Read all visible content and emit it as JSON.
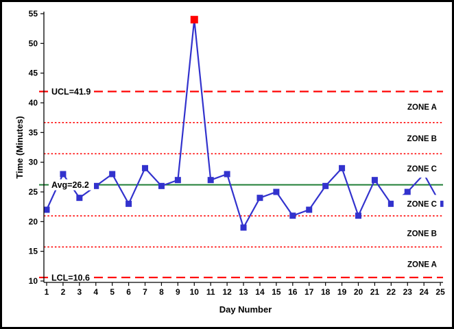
{
  "chart_data": {
    "type": "line",
    "title": "",
    "xlabel": "Day Number",
    "ylabel": "Time (Minutes)",
    "x": [
      1,
      2,
      3,
      4,
      5,
      6,
      7,
      8,
      9,
      10,
      11,
      12,
      13,
      14,
      15,
      16,
      17,
      18,
      19,
      20,
      21,
      22,
      23,
      24,
      25
    ],
    "series": [
      {
        "name": "Time",
        "values": [
          22,
          28,
          24,
          26,
          28,
          23,
          29,
          26,
          27,
          54,
          27,
          28,
          19,
          24,
          25,
          21,
          22,
          26,
          29,
          21,
          27,
          23,
          25,
          28,
          23
        ]
      }
    ],
    "out_of_control_points": [
      {
        "x": 10,
        "y": 54
      }
    ],
    "control_lines": {
      "ucl": {
        "value": 41.9,
        "label": "UCL=41.9"
      },
      "avg": {
        "value": 26.2,
        "label": "Avg=26.2"
      },
      "lcl": {
        "value": 10.6,
        "label": "LCL=10.6"
      },
      "zone_boundaries": [
        36.67,
        31.43,
        20.97,
        15.73
      ]
    },
    "zone_labels": [
      {
        "text": "ZONE A",
        "value": 39.3
      },
      {
        "text": "ZONE B",
        "value": 34.0
      },
      {
        "text": "ZONE C",
        "value": 28.9
      },
      {
        "text": "ZONE C",
        "value": 23.0
      },
      {
        "text": "ZONE B",
        "value": 18.0
      },
      {
        "text": "ZONE A",
        "value": 12.8
      }
    ],
    "ylim": [
      10,
      55
    ],
    "yticks": [
      10,
      15,
      20,
      25,
      30,
      35,
      40,
      45,
      50,
      55
    ],
    "xticks": [
      1,
      2,
      3,
      4,
      5,
      6,
      7,
      8,
      9,
      10,
      11,
      12,
      13,
      14,
      15,
      16,
      17,
      18,
      19,
      20,
      21,
      22,
      23,
      24,
      25
    ],
    "grid": false,
    "legend": false,
    "colors": {
      "series": "#3232cd",
      "limits": "#ff0000",
      "avg": "#1e7e34",
      "out_of_control": "#ff0000",
      "axis": "#000000",
      "label_bg": "#ffffff"
    }
  }
}
